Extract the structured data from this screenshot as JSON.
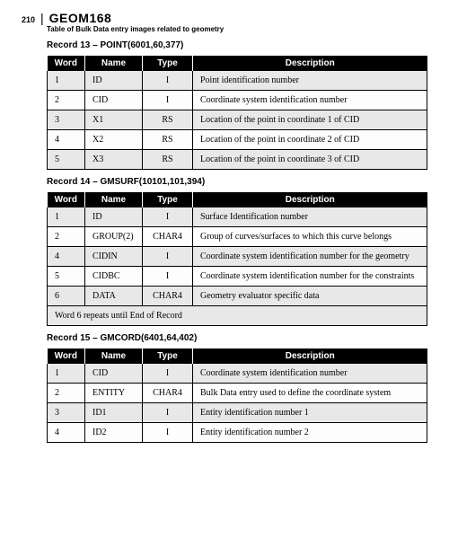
{
  "pageNumber": "210",
  "title": "GEOM168",
  "subtitle": "Table of Bulk Data entry images related to geometry",
  "records": [
    {
      "heading": "Record 13 – POINT(6001,60,377)",
      "columns": [
        "Word",
        "Name",
        "Type",
        "Description"
      ],
      "rows": [
        {
          "word": "1",
          "name": "ID",
          "type": "I",
          "desc": "Point identification number",
          "alt": true
        },
        {
          "word": "2",
          "name": "CID",
          "type": "I",
          "desc": "Coordinate system identification number",
          "alt": false
        },
        {
          "word": "3",
          "name": "X1",
          "type": "RS",
          "desc": "Location of the point in coordinate 1 of CID",
          "alt": true
        },
        {
          "word": "4",
          "name": "X2",
          "type": "RS",
          "desc": "Location of the point in coordinate 2 of CID",
          "alt": false
        },
        {
          "word": "5",
          "name": "X3",
          "type": "RS",
          "desc": "Location of the point in coordinate 3 of CID",
          "alt": true
        }
      ],
      "footer": null
    },
    {
      "heading": "Record 14 – GMSURF(10101,101,394)",
      "columns": [
        "Word",
        "Name",
        "Type",
        "Description"
      ],
      "rows": [
        {
          "word": "1",
          "name": "ID",
          "type": "I",
          "desc": "Surface Identification number",
          "alt": true
        },
        {
          "word": "2",
          "name": "GROUP(2)",
          "type": "CHAR4",
          "desc": "Group of curves/surfaces to which this curve belongs",
          "alt": false
        },
        {
          "word": "4",
          "name": "CIDIN",
          "type": "I",
          "desc": "Coordinate system identification number for the geometry",
          "alt": true
        },
        {
          "word": "5",
          "name": "CIDBC",
          "type": "I",
          "desc": "Coordinate system identification number for the constraints",
          "alt": false
        },
        {
          "word": "6",
          "name": "DATA",
          "type": "CHAR4",
          "desc": "Geometry evaluator specific data",
          "alt": true
        }
      ],
      "footer": "Word 6 repeats until End of Record"
    },
    {
      "heading": "Record 15 – GMCORD(6401,64,402)",
      "columns": [
        "Word",
        "Name",
        "Type",
        "Description"
      ],
      "rows": [
        {
          "word": "1",
          "name": "CID",
          "type": "I",
          "desc": "Coordinate system identification number",
          "alt": true
        },
        {
          "word": "2",
          "name": "ENTITY",
          "type": "CHAR4",
          "desc": "Bulk Data entry used to define the coordinate system",
          "alt": false
        },
        {
          "word": "3",
          "name": "ID1",
          "type": "I",
          "desc": "Entity identification number 1",
          "alt": true
        },
        {
          "word": "4",
          "name": "ID2",
          "type": "I",
          "desc": "Entity identification number 2",
          "alt": false
        }
      ],
      "footer": null
    }
  ]
}
